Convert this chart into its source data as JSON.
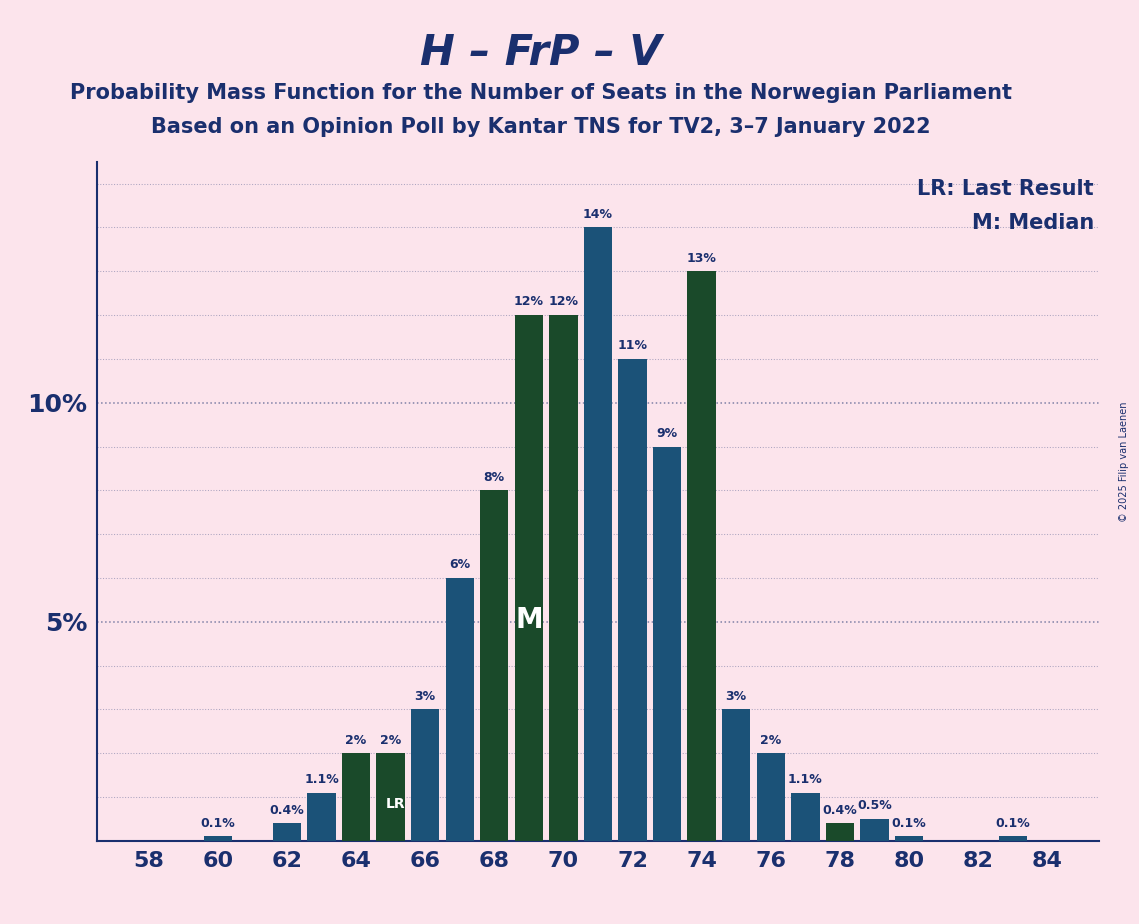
{
  "title": "H – FrP – V",
  "subtitle1": "Probability Mass Function for the Number of Seats in the Norwegian Parliament",
  "subtitle2": "Based on an Opinion Poll by Kantar TNS for TV2, 3–7 January 2022",
  "copyright": "© 2025 Filip van Laenen",
  "seats": [
    58,
    59,
    60,
    61,
    62,
    63,
    64,
    65,
    66,
    67,
    68,
    69,
    70,
    71,
    72,
    73,
    74,
    75,
    76,
    77,
    78,
    79,
    80,
    81,
    82,
    83,
    84
  ],
  "values": [
    0.0,
    0.0,
    0.1,
    0.0,
    0.4,
    1.1,
    2.0,
    2.0,
    3.0,
    6.0,
    8.0,
    12.0,
    12.0,
    14.0,
    11.0,
    9.0,
    13.0,
    3.0,
    2.0,
    1.1,
    0.4,
    0.5,
    0.1,
    0.0,
    0.0,
    0.1,
    0.0
  ],
  "green_seats": [
    64,
    65,
    68,
    69,
    70,
    74,
    78
  ],
  "lr_seat": 65,
  "median_seat": 69,
  "background_color": "#fce4ec",
  "blue_color": "#1b5278",
  "green_color": "#1a4a2a",
  "title_color": "#1a2f6e",
  "axis_color": "#1a2f6e",
  "grid_color": "#1a2f6e",
  "ylim": 15.5,
  "legend_lr": "LR: Last Result",
  "legend_m": "M: Median",
  "title_fontsize": 30,
  "subtitle_fontsize": 15,
  "tick_fontsize": 16,
  "ytick_fontsize": 18,
  "bar_label_fontsize": 9,
  "legend_fontsize": 15
}
